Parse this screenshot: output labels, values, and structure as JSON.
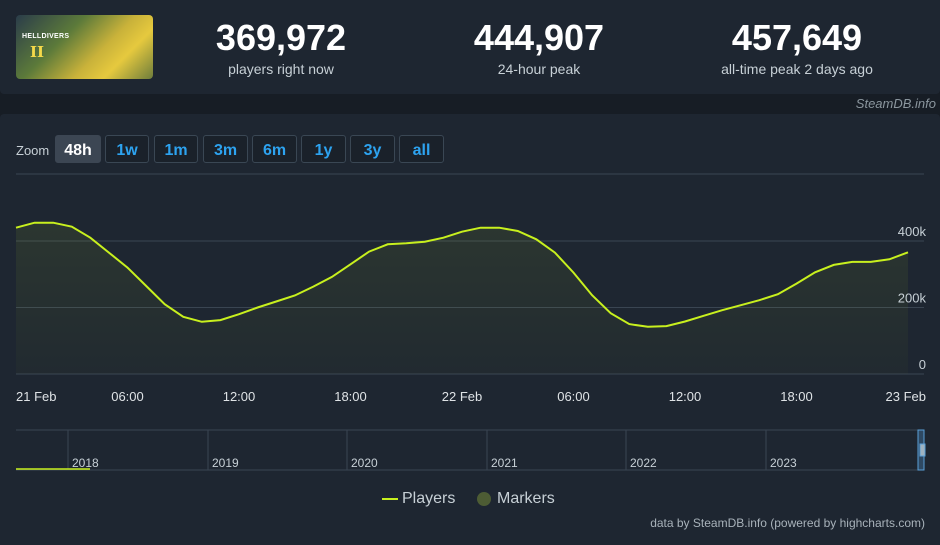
{
  "game": {
    "logo_text": "HELLDIVERS",
    "logo_mark": "II"
  },
  "stats": [
    {
      "value": "369,972",
      "label": "players right now"
    },
    {
      "value": "444,907",
      "label": "24-hour peak"
    },
    {
      "value": "457,649",
      "label": "all-time peak 2 days ago"
    }
  ],
  "credit": "SteamDB.info",
  "zoom": {
    "label": "Zoom",
    "buttons": [
      "48h",
      "1w",
      "1m",
      "3m",
      "6m",
      "1y",
      "3y",
      "all"
    ],
    "active": "48h"
  },
  "legend": {
    "players": "Players",
    "markers": "Markers"
  },
  "footer": "data by SteamDB.info (powered by highcharts.com)",
  "colors": {
    "series": "#c8f01e",
    "markers": "#4d5c34",
    "accent": "#2da3f0",
    "grid": "#3a4552"
  },
  "chart_data": {
    "type": "area",
    "title": "",
    "xlabel": "",
    "ylabel": "",
    "x_ticks": [
      "21 Feb",
      "06:00",
      "12:00",
      "18:00",
      "22 Feb",
      "06:00",
      "12:00",
      "18:00",
      "23 Feb"
    ],
    "y_ticks": [
      "0",
      "200k",
      "400k"
    ],
    "xlim_hours": [
      0,
      48
    ],
    "ylim": [
      0,
      430000
    ],
    "series": [
      {
        "name": "Players",
        "x_hours": [
          0,
          1,
          2,
          3,
          4,
          5,
          6,
          7,
          8,
          9,
          10,
          11,
          12,
          13,
          14,
          15,
          16,
          17,
          18,
          19,
          20,
          21,
          22,
          23,
          24,
          25,
          26,
          27,
          28,
          29,
          30,
          31,
          32,
          33,
          34,
          35,
          36,
          37,
          38,
          39,
          40,
          41,
          42,
          43,
          44,
          45,
          46,
          47,
          48
        ],
        "values": [
          440000,
          455000,
          455000,
          443000,
          410000,
          365000,
          320000,
          265000,
          210000,
          172000,
          157000,
          162000,
          180000,
          200000,
          218000,
          236000,
          263000,
          292000,
          330000,
          368000,
          390000,
          393000,
          398000,
          410000,
          428000,
          440000,
          440000,
          430000,
          405000,
          365000,
          305000,
          237000,
          183000,
          150000,
          142000,
          144000,
          158000,
          175000,
          192000,
          207000,
          222000,
          240000,
          272000,
          306000,
          328000,
          337000,
          337000,
          345000,
          366000
        ]
      }
    ],
    "navigator_years": [
      "2018",
      "2019",
      "2020",
      "2021",
      "2022",
      "2023"
    ]
  }
}
